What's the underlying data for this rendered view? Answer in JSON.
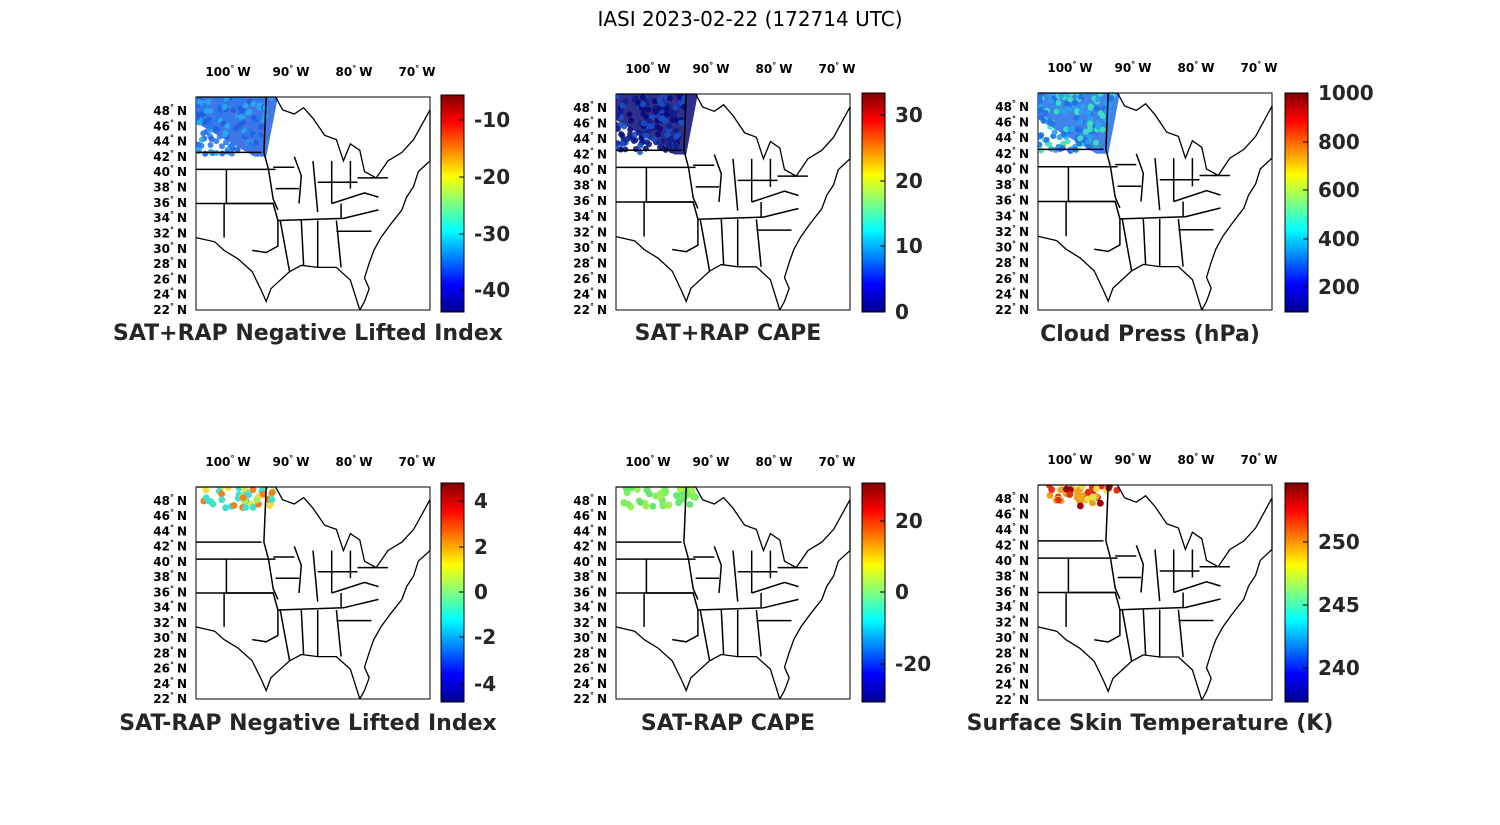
{
  "title": "IASI 2023-02-22 (172714 UTC)",
  "map_axes": {
    "lon_ticks": [
      "100",
      "90",
      "80",
      "70"
    ],
    "lon_hemisphere": "W",
    "lat_ticks": [
      "48",
      "46",
      "44",
      "42",
      "40",
      "38",
      "36",
      "34",
      "32",
      "30",
      "28",
      "26",
      "24",
      "22"
    ],
    "lat_hemisphere": "N",
    "degree_symbol": "°"
  },
  "panels": [
    {
      "id": "sat-rap-neg-li",
      "label": "SAT+RAP Negative Lifted Index",
      "colorbar": {
        "ticks": [
          "-10",
          "-20",
          "-30",
          "-40"
        ],
        "colormap": "jet"
      },
      "swath": {
        "style": "dense",
        "dominant_colors": [
          "#1f5fe0",
          "#2a7af0",
          "#28a8f0"
        ]
      }
    },
    {
      "id": "sat-rap-cape",
      "label": "SAT+RAP CAPE",
      "colorbar": {
        "ticks": [
          "30",
          "20",
          "10",
          "0"
        ],
        "colormap": "jet"
      },
      "swath": {
        "style": "dense",
        "dominant_colors": [
          "#0a0a78",
          "#10208c",
          "#1a50c8"
        ]
      }
    },
    {
      "id": "cloud-press",
      "label": "Cloud Press (hPa)",
      "colorbar": {
        "ticks": [
          "1000",
          "800",
          "600",
          "400",
          "200"
        ],
        "colormap": "jet"
      },
      "swath": {
        "style": "dense",
        "dominant_colors": [
          "#1f6fe8",
          "#2aa0f0",
          "#40e0c0"
        ]
      }
    },
    {
      "id": "sat-minus-rap-neg-li",
      "label": "SAT-RAP Negative Lifted Index",
      "colorbar": {
        "ticks": [
          "4",
          "2",
          "0",
          "-2",
          "-4"
        ],
        "colormap": "jet"
      },
      "swath": {
        "style": "sparse",
        "dominant_colors": [
          "#40e0d0",
          "#a0f060",
          "#f0e040",
          "#f08020"
        ]
      }
    },
    {
      "id": "sat-minus-rap-cape",
      "label": "SAT-RAP CAPE",
      "colorbar": {
        "ticks": [
          "20",
          "0",
          "-20"
        ],
        "colormap": "jet"
      },
      "swath": {
        "style": "sparse",
        "dominant_colors": [
          "#80f060",
          "#a0f050",
          "#60e870"
        ]
      }
    },
    {
      "id": "surface-skin-temp",
      "label": "Surface Skin Temperature (K)",
      "colorbar": {
        "ticks": [
          "250",
          "245",
          "240"
        ],
        "colormap": "jet"
      },
      "swath": {
        "style": "sparse",
        "dominant_colors": [
          "#f0e040",
          "#f0a020",
          "#e03010",
          "#a00000"
        ]
      }
    }
  ]
}
